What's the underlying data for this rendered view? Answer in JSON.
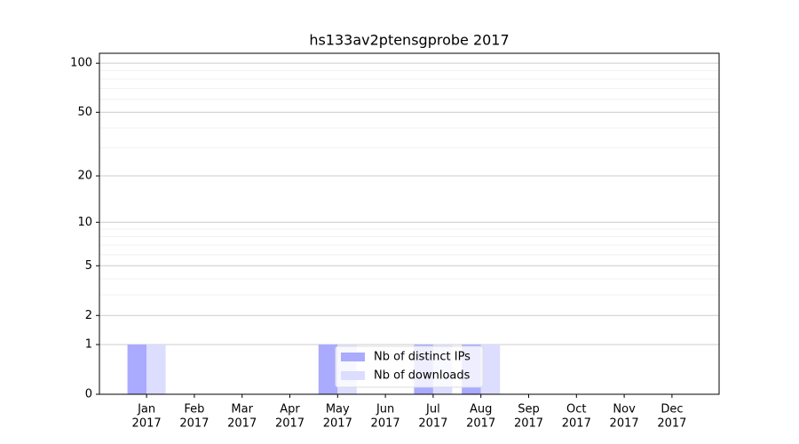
{
  "chart_data": {
    "type": "bar",
    "title": "hs133av2ptensgprobe 2017",
    "categories": [
      [
        "Jan",
        "2017"
      ],
      [
        "Feb",
        "2017"
      ],
      [
        "Mar",
        "2017"
      ],
      [
        "Apr",
        "2017"
      ],
      [
        "May",
        "2017"
      ],
      [
        "Jun",
        "2017"
      ],
      [
        "Jul",
        "2017"
      ],
      [
        "Aug",
        "2017"
      ],
      [
        "Sep",
        "2017"
      ],
      [
        "Oct",
        "2017"
      ],
      [
        "Nov",
        "2017"
      ],
      [
        "Dec",
        "2017"
      ]
    ],
    "series": [
      {
        "name": "Nb of distinct IPs",
        "color": "#aaaaff",
        "values": [
          1,
          0,
          0,
          0,
          1,
          0,
          1,
          1,
          0,
          0,
          0,
          0
        ]
      },
      {
        "name": "Nb of downloads",
        "color": "#ddddff",
        "values": [
          1,
          0,
          0,
          0,
          1,
          0,
          1,
          1,
          0,
          0,
          0,
          0
        ]
      }
    ],
    "yscale": "log1p",
    "ylim": [
      0,
      115
    ],
    "yticks": [
      0,
      1,
      2,
      5,
      10,
      20,
      50,
      100
    ],
    "minor_yticks": [
      3,
      4,
      6,
      7,
      8,
      9,
      30,
      40,
      60,
      70,
      80,
      90
    ],
    "grid": true,
    "legend": "lower center"
  }
}
